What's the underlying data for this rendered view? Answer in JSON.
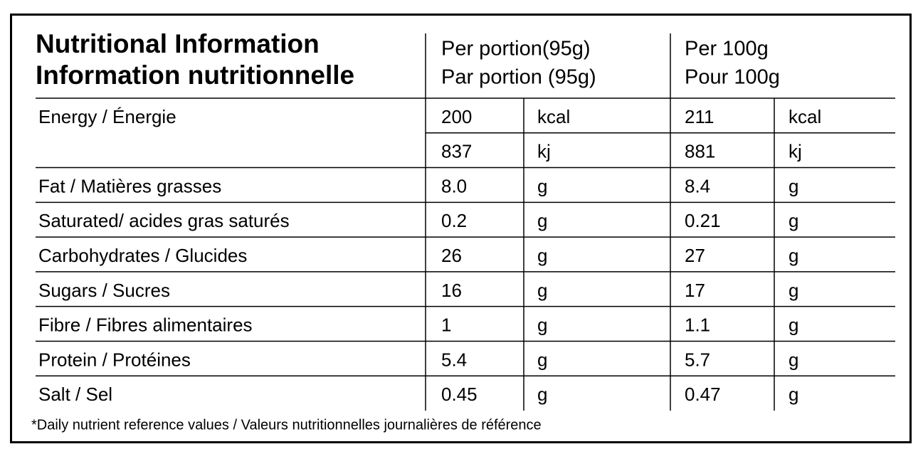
{
  "header": {
    "title": [
      "Nutritional Information",
      "Information nutritionnelle"
    ],
    "per_portion": [
      "Per portion(95g)",
      "Par portion (95g)"
    ],
    "per_100g": [
      "Per 100g",
      "Pour 100g"
    ]
  },
  "rows": [
    {
      "label": "Energy / Énergie",
      "lines": [
        [
          "200",
          "kcal",
          "211",
          "kcal"
        ],
        [
          "837",
          "kj",
          "881",
          "kj"
        ]
      ]
    },
    {
      "label": "Fat / Matières grasses",
      "lines": [
        [
          "8.0",
          "g",
          "8.4",
          "g"
        ]
      ]
    },
    {
      "label": "Saturated/ acides gras saturés",
      "lines": [
        [
          "0.2",
          "g",
          "0.21",
          "g"
        ]
      ]
    },
    {
      "label": "Carbohydrates / Glucides",
      "lines": [
        [
          "26",
          "g",
          "27",
          "g"
        ]
      ]
    },
    {
      "label": "Sugars / Sucres",
      "lines": [
        [
          "16",
          "g",
          "17",
          "g"
        ]
      ]
    },
    {
      "label": "Fibre / Fibres alimentaires",
      "lines": [
        [
          "1",
          "g",
          "1.1",
          "g"
        ]
      ]
    },
    {
      "label": "Protein / Protéines",
      "lines": [
        [
          "5.4",
          "g",
          "5.7",
          "g"
        ]
      ]
    },
    {
      "label": "Salt / Sel",
      "lines": [
        [
          "0.45",
          "g",
          "0.47",
          "g"
        ]
      ]
    }
  ],
  "footnote": "*Daily nutrient reference values / Valeurs nutritionnelles journalières de référence"
}
